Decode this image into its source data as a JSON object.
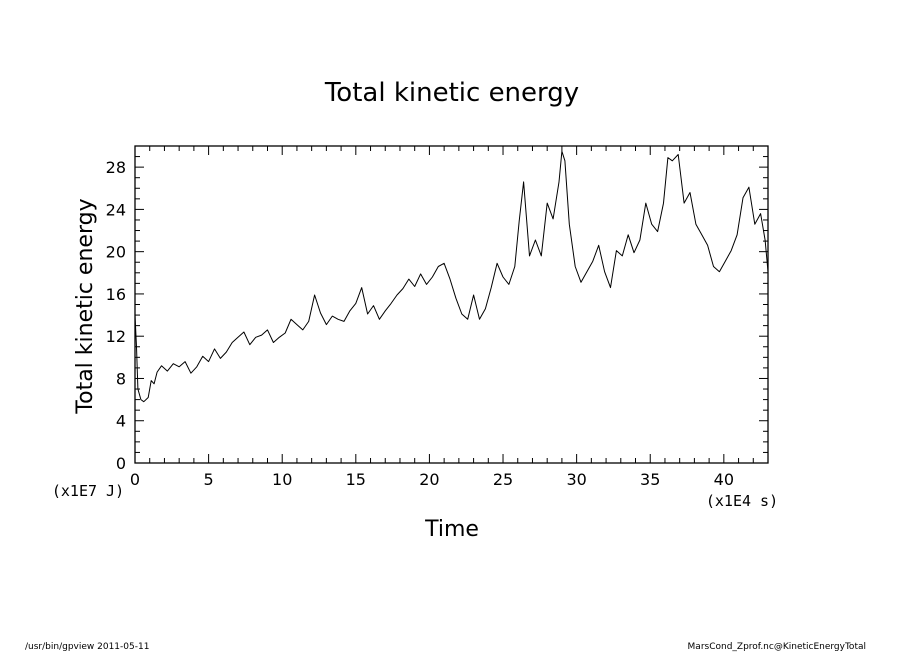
{
  "chart_data": {
    "type": "line",
    "title": "Total kinetic energy",
    "xlabel": "Time",
    "ylabel": "Total kinetic energy",
    "x_unit": "(x1E4 s)",
    "y_unit": "(x1E7 J)",
    "xlim": [
      0,
      43
    ],
    "ylim": [
      0,
      30
    ],
    "xticks": [
      0,
      5,
      10,
      15,
      20,
      25,
      30,
      35,
      40
    ],
    "xticklabels": [
      "0",
      "5",
      "10",
      "15",
      "20",
      "25",
      "30",
      "35",
      "40"
    ],
    "yticks": [
      0,
      4,
      8,
      12,
      16,
      20,
      24,
      28
    ],
    "yticklabels": [
      "0",
      "4",
      "8",
      "12",
      "16",
      "20",
      "24",
      "28"
    ],
    "grid": false,
    "legend": "none",
    "series": [
      {
        "x": [
          0,
          0.1,
          0.2,
          0.4,
          0.6,
          0.9,
          1.1,
          1.3,
          1.5,
          1.8,
          2.2,
          2.6,
          3.0,
          3.4,
          3.8,
          4.2,
          4.6,
          5.0,
          5.4,
          5.8,
          6.2,
          6.6,
          7.0,
          7.4,
          7.8,
          8.2,
          8.6,
          9.0,
          9.4,
          9.8,
          10.2,
          10.6,
          11.0,
          11.4,
          11.8,
          12.2,
          12.6,
          13.0,
          13.4,
          13.8,
          14.2,
          14.6,
          15.0,
          15.4,
          15.8,
          16.2,
          16.6,
          17.0,
          17.4,
          17.8,
          18.2,
          18.6,
          19.0,
          19.4,
          19.8,
          20.2,
          20.6,
          21.0,
          21.4,
          21.8,
          22.2,
          22.6,
          23.0,
          23.4,
          23.8,
          24.2,
          24.6,
          25.0,
          25.4,
          25.8,
          26.1,
          26.4,
          26.8,
          27.2,
          27.6,
          28.0,
          28.4,
          28.8,
          29.0,
          29.2,
          29.5,
          29.9,
          30.3,
          30.7,
          31.1,
          31.5,
          31.9,
          32.3,
          32.7,
          33.1,
          33.5,
          33.9,
          34.3,
          34.7,
          35.1,
          35.5,
          35.9,
          36.2,
          36.5,
          36.9,
          37.3,
          37.7,
          38.1,
          38.5,
          38.9,
          39.3,
          39.7,
          40.1,
          40.5,
          40.9,
          41.3,
          41.7,
          42.1,
          42.5,
          42.8,
          43.0
        ],
        "y": [
          14,
          11,
          7,
          6,
          5.8,
          6.2,
          7.8,
          7.5,
          8.6,
          9.2,
          8.7,
          9.4,
          9.1,
          9.6,
          8.5,
          9.1,
          10.1,
          9.6,
          10.8,
          9.9,
          10.5,
          11.4,
          11.9,
          12.4,
          11.2,
          11.9,
          12.1,
          12.6,
          11.4,
          11.9,
          12.3,
          13.6,
          13.1,
          12.6,
          13.4,
          15.9,
          14.2,
          13.1,
          13.9,
          13.6,
          13.4,
          14.4,
          15.1,
          16.6,
          14.1,
          14.9,
          13.6,
          14.4,
          15.1,
          15.9,
          16.5,
          17.4,
          16.7,
          17.9,
          16.9,
          17.6,
          18.6,
          18.9,
          17.4,
          15.6,
          14.1,
          13.6,
          15.9,
          13.6,
          14.6,
          16.6,
          18.9,
          17.6,
          16.9,
          18.6,
          22.9,
          26.6,
          19.6,
          21.1,
          19.6,
          24.6,
          23.1,
          26.6,
          29.5,
          28.6,
          22.6,
          18.6,
          17.1,
          18.1,
          19.1,
          20.6,
          18.1,
          16.6,
          20.1,
          19.6,
          21.6,
          19.9,
          21.1,
          24.6,
          22.6,
          21.9,
          24.6,
          28.9,
          28.6,
          29.2,
          24.6,
          25.6,
          22.6,
          21.6,
          20.6,
          18.6,
          18.1,
          19.1,
          20.1,
          21.6,
          25.1,
          26.1,
          22.6,
          23.6,
          21.1,
          18.1
        ]
      }
    ]
  },
  "footer": {
    "left": "/usr/bin/gpview   2011-05-11",
    "right": "MarsCond_Zprof.nc@KineticEnergyTotal"
  }
}
